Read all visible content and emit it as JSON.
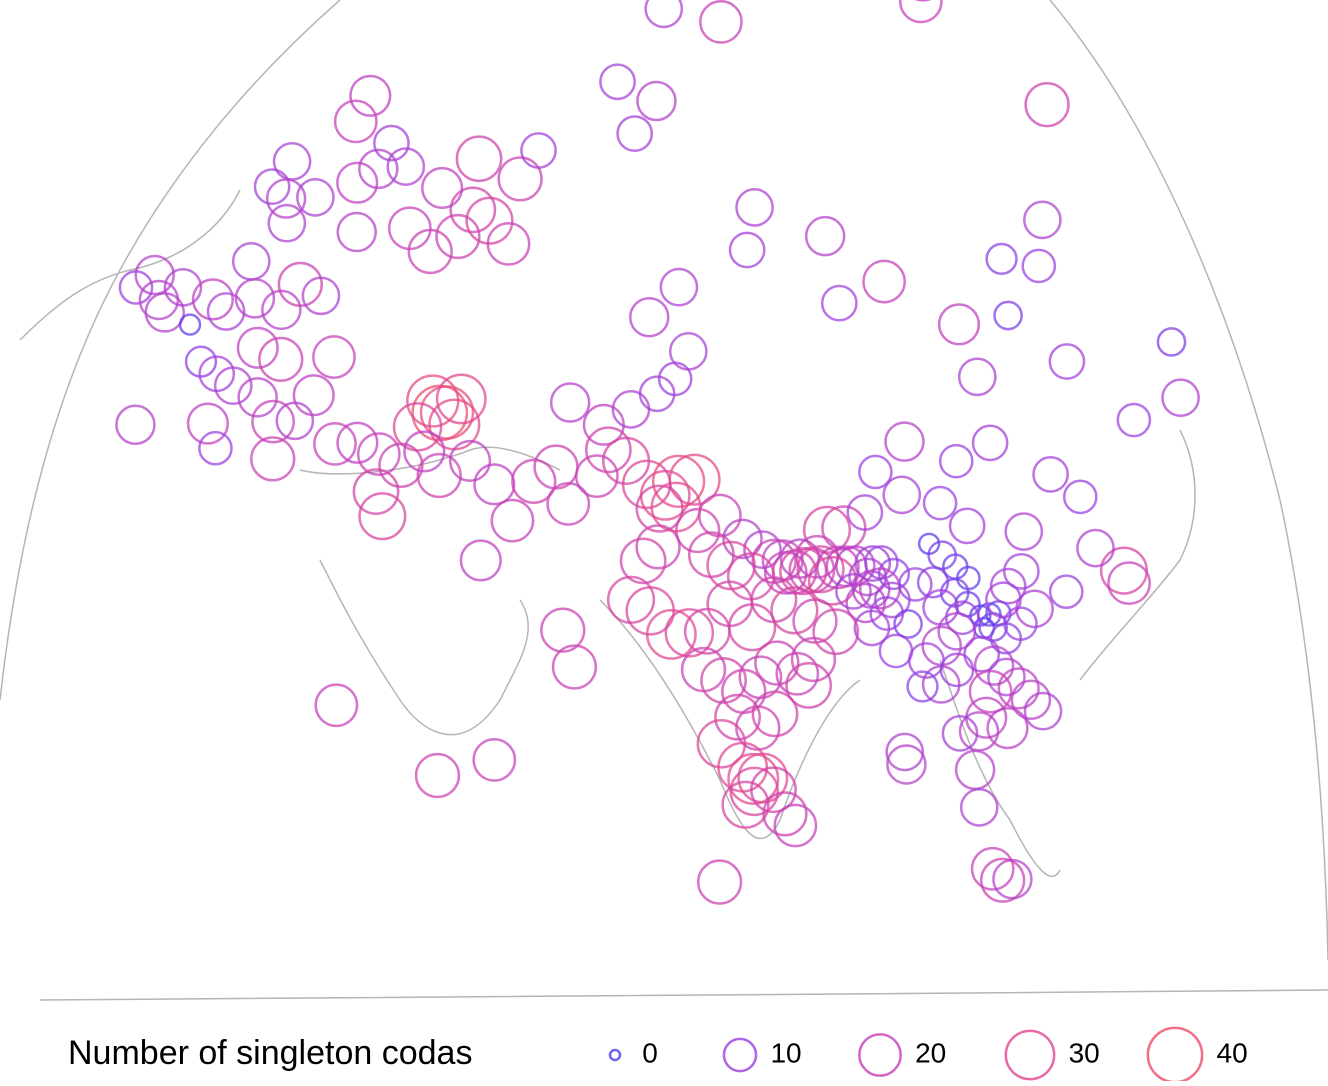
{
  "chart_data": {
    "type": "bubble-map",
    "points": [
      {
        "lon": -8,
        "lat": 53,
        "value": 10
      },
      {
        "lon": -6,
        "lat": 54,
        "value": 16
      },
      {
        "lon": -3,
        "lat": 52,
        "value": 16
      },
      {
        "lon": -1,
        "lat": 51,
        "value": 16
      },
      {
        "lon": 0,
        "lat": 53,
        "value": 14
      },
      {
        "lon": 4,
        "lat": 50,
        "value": 2
      },
      {
        "lon": 2,
        "lat": 42,
        "value": 16
      },
      {
        "lon": 24,
        "lat": 68,
        "value": 18
      },
      {
        "lon": 22,
        "lat": 66,
        "value": 20
      },
      {
        "lon": 10,
        "lat": 63,
        "value": 14
      },
      {
        "lon": 8,
        "lat": 61,
        "value": 12
      },
      {
        "lon": 12,
        "lat": 60,
        "value": 16
      },
      {
        "lon": 14,
        "lat": 58,
        "value": 14
      },
      {
        "lon": 18,
        "lat": 60,
        "value": 14
      },
      {
        "lon": 26,
        "lat": 61,
        "value": 18
      },
      {
        "lon": 30,
        "lat": 62,
        "value": 16
      },
      {
        "lon": 32,
        "lat": 64,
        "value": 12
      },
      {
        "lon": 28,
        "lat": 57,
        "value": 16
      },
      {
        "lon": 36,
        "lat": 62,
        "value": 14
      },
      {
        "lon": 10,
        "lat": 55,
        "value": 14
      },
      {
        "lon": 6,
        "lat": 52,
        "value": 18
      },
      {
        "lon": 9,
        "lat": 51,
        "value": 14
      },
      {
        "lon": 13,
        "lat": 52,
        "value": 16
      },
      {
        "lon": 18,
        "lat": 51,
        "value": 16
      },
      {
        "lon": 20,
        "lat": 53,
        "value": 22
      },
      {
        "lon": 24,
        "lat": 52,
        "value": 14
      },
      {
        "lon": 16,
        "lat": 48,
        "value": 18
      },
      {
        "lon": 20,
        "lat": 47,
        "value": 22
      },
      {
        "lon": 8,
        "lat": 47,
        "value": 8
      },
      {
        "lon": 11,
        "lat": 46,
        "value": 12
      },
      {
        "lon": 14,
        "lat": 45,
        "value": 14
      },
      {
        "lon": 18,
        "lat": 44,
        "value": 16
      },
      {
        "lon": 21,
        "lat": 42,
        "value": 20
      },
      {
        "lon": 24,
        "lat": 42,
        "value": 14
      },
      {
        "lon": 22,
        "lat": 39,
        "value": 22
      },
      {
        "lon": 26,
        "lat": 44,
        "value": 18
      },
      {
        "lon": 28,
        "lat": 47,
        "value": 20
      },
      {
        "lon": 12,
        "lat": 42,
        "value": 18
      },
      {
        "lon": 14,
        "lat": 40,
        "value": 10
      },
      {
        "lon": 38,
        "lat": 57,
        "value": 20
      },
      {
        "lon": 42,
        "lat": 55,
        "value": 22
      },
      {
        "lon": 47,
        "lat": 56,
        "value": 22
      },
      {
        "lon": 50,
        "lat": 58,
        "value": 24
      },
      {
        "lon": 53,
        "lat": 57,
        "value": 26
      },
      {
        "lon": 56,
        "lat": 55,
        "value": 20
      },
      {
        "lon": 52,
        "lat": 62,
        "value": 24
      },
      {
        "lon": 60,
        "lat": 60,
        "value": 22
      },
      {
        "lon": 44,
        "lat": 60,
        "value": 18
      },
      {
        "lon": 65,
        "lat": 62,
        "value": 12
      },
      {
        "lon": 44,
        "lat": 42,
        "value": 40
      },
      {
        "lon": 45,
        "lat": 42,
        "value": 36
      },
      {
        "lon": 43,
        "lat": 43,
        "value": 34
      },
      {
        "lon": 46,
        "lat": 41,
        "value": 32
      },
      {
        "lon": 41,
        "lat": 41,
        "value": 28
      },
      {
        "lon": 47,
        "lat": 43,
        "value": 30
      },
      {
        "lon": 30,
        "lat": 40,
        "value": 20
      },
      {
        "lon": 33,
        "lat": 40,
        "value": 18
      },
      {
        "lon": 36,
        "lat": 39,
        "value": 20
      },
      {
        "lon": 39,
        "lat": 38,
        "value": 22
      },
      {
        "lon": 42,
        "lat": 39,
        "value": 18
      },
      {
        "lon": 36,
        "lat": 36,
        "value": 24
      },
      {
        "lon": 37,
        "lat": 34,
        "value": 26
      },
      {
        "lon": 44,
        "lat": 37,
        "value": 22
      },
      {
        "lon": 48,
        "lat": 38,
        "value": 18
      },
      {
        "lon": 51,
        "lat": 36,
        "value": 18
      },
      {
        "lon": 53,
        "lat": 33,
        "value": 20
      },
      {
        "lon": 49,
        "lat": 30,
        "value": 18
      },
      {
        "lon": 56,
        "lat": 36,
        "value": 22
      },
      {
        "lon": 59,
        "lat": 37,
        "value": 22
      },
      {
        "lon": 33,
        "lat": 19,
        "value": 20
      },
      {
        "lon": 44,
        "lat": 13,
        "value": 22
      },
      {
        "lon": 50,
        "lat": 14,
        "value": 20
      },
      {
        "lon": 58,
        "lat": 24,
        "value": 22
      },
      {
        "lon": 59,
        "lat": 21,
        "value": 22
      },
      {
        "lon": 62,
        "lat": 42,
        "value": 16
      },
      {
        "lon": 66,
        "lat": 40,
        "value": 18
      },
      {
        "lon": 70,
        "lat": 41,
        "value": 14
      },
      {
        "lon": 74,
        "lat": 42,
        "value": 12
      },
      {
        "lon": 77,
        "lat": 43,
        "value": 10
      },
      {
        "lon": 80,
        "lat": 45,
        "value": 14
      },
      {
        "lon": 76,
        "lat": 48,
        "value": 16
      },
      {
        "lon": 82,
        "lat": 50,
        "value": 14
      },
      {
        "lon": 66,
        "lat": 38,
        "value": 24
      },
      {
        "lon": 68,
        "lat": 37,
        "value": 26
      },
      {
        "lon": 70,
        "lat": 35,
        "value": 28
      },
      {
        "lon": 72,
        "lat": 34,
        "value": 30
      },
      {
        "lon": 74,
        "lat": 35,
        "value": 34
      },
      {
        "lon": 76,
        "lat": 35,
        "value": 32
      },
      {
        "lon": 64,
        "lat": 36,
        "value": 20
      },
      {
        "lon": 60,
        "lat": 34,
        "value": 20
      },
      {
        "lon": 88,
        "lat": 66,
        "value": 12
      },
      {
        "lon": 94,
        "lat": 64,
        "value": 16
      },
      {
        "lon": 86,
        "lat": 62,
        "value": 12
      },
      {
        "lon": 110,
        "lat": 70,
        "value": 14
      },
      {
        "lon": 120,
        "lat": 68,
        "value": 20
      },
      {
        "lon": 128,
        "lat": 72,
        "value": 14
      },
      {
        "lon": 135,
        "lat": 70,
        "value": 16
      },
      {
        "lon": 160,
        "lat": 65,
        "value": 20
      },
      {
        "lon": 165,
        "lat": 66,
        "value": 18
      },
      {
        "lon": 158,
        "lat": 57,
        "value": 22
      },
      {
        "lon": 100,
        "lat": 55,
        "value": 14
      },
      {
        "lon": 95,
        "lat": 52,
        "value": 12
      },
      {
        "lon": 108,
        "lat": 52,
        "value": 16
      },
      {
        "lon": 104,
        "lat": 47,
        "value": 12
      },
      {
        "lon": 112,
        "lat": 48,
        "value": 20
      },
      {
        "lon": 118,
        "lat": 44,
        "value": 18
      },
      {
        "lon": 130,
        "lat": 48,
        "value": 8
      },
      {
        "lon": 134,
        "lat": 47,
        "value": 10
      },
      {
        "lon": 140,
        "lat": 50,
        "value": 14
      },
      {
        "lon": 125,
        "lat": 44,
        "value": 6
      },
      {
        "lon": 128,
        "lat": 40,
        "value": 12
      },
      {
        "lon": 131,
        "lat": 35,
        "value": 10
      },
      {
        "lon": 138,
        "lat": 36,
        "value": 14
      },
      {
        "lon": 142,
        "lat": 40,
        "value": 6
      },
      {
        "lon": 121,
        "lat": 24,
        "value": 26
      },
      {
        "lon": 121,
        "lat": 23,
        "value": 20
      },
      {
        "lon": 116,
        "lat": 40,
        "value": 14
      },
      {
        "lon": 113,
        "lat": 35,
        "value": 12
      },
      {
        "lon": 108,
        "lat": 34,
        "value": 10
      },
      {
        "lon": 103,
        "lat": 36,
        "value": 16
      },
      {
        "lon": 118,
        "lat": 32,
        "value": 12
      },
      {
        "lon": 120,
        "lat": 30,
        "value": 10
      },
      {
        "lon": 112,
        "lat": 28,
        "value": 14
      },
      {
        "lon": 110,
        "lat": 25,
        "value": 12
      },
      {
        "lon": 114,
        "lat": 23,
        "value": 10
      },
      {
        "lon": 119,
        "lat": 26,
        "value": 14
      },
      {
        "lon": 106,
        "lat": 29,
        "value": 12
      },
      {
        "lon": 104,
        "lat": 31,
        "value": 10
      },
      {
        "lon": 100,
        "lat": 32,
        "value": 14
      },
      {
        "lon": 98,
        "lat": 34,
        "value": 10
      },
      {
        "lon": 92,
        "lat": 30,
        "value": 22
      },
      {
        "lon": 95,
        "lat": 31,
        "value": 12
      },
      {
        "lon": 90,
        "lat": 30,
        "value": 26
      },
      {
        "lon": 88,
        "lat": 28,
        "value": 20
      },
      {
        "lon": 86,
        "lat": 28,
        "value": 16
      },
      {
        "lon": 84,
        "lat": 28,
        "value": 18
      },
      {
        "lon": 82,
        "lat": 29,
        "value": 14
      },
      {
        "lon": 80,
        "lat": 30,
        "value": 16
      },
      {
        "lon": 78,
        "lat": 32,
        "value": 20
      },
      {
        "lon": 85,
        "lat": 27,
        "value": 22
      },
      {
        "lon": 86,
        "lat": 27,
        "value": 26
      },
      {
        "lon": 87,
        "lat": 27,
        "value": 24
      },
      {
        "lon": 88,
        "lat": 27,
        "value": 26
      },
      {
        "lon": 89,
        "lat": 26,
        "value": 28
      },
      {
        "lon": 84,
        "lat": 27,
        "value": 20
      },
      {
        "lon": 83,
        "lat": 28,
        "value": 22
      },
      {
        "lon": 90,
        "lat": 27,
        "value": 20
      },
      {
        "lon": 91,
        "lat": 27,
        "value": 18
      },
      {
        "lon": 92,
        "lat": 27,
        "value": 16
      },
      {
        "lon": 93,
        "lat": 26,
        "value": 14
      },
      {
        "lon": 94,
        "lat": 27,
        "value": 12
      },
      {
        "lon": 95,
        "lat": 27,
        "value": 10
      },
      {
        "lon": 96,
        "lat": 26,
        "value": 8
      },
      {
        "lon": 93,
        "lat": 25,
        "value": 14
      },
      {
        "lon": 94,
        "lat": 25,
        "value": 18
      },
      {
        "lon": 95,
        "lat": 24,
        "value": 12
      },
      {
        "lon": 92,
        "lat": 24,
        "value": 16
      },
      {
        "lon": 91,
        "lat": 25,
        "value": 12
      },
      {
        "lon": 94,
        "lat": 23,
        "value": 10
      },
      {
        "lon": 96,
        "lat": 22,
        "value": 6
      },
      {
        "lon": 98,
        "lat": 25,
        "value": 10
      },
      {
        "lon": 100,
        "lat": 25,
        "value": 8
      },
      {
        "lon": 102,
        "lat": 24,
        "value": 6
      },
      {
        "lon": 103,
        "lat": 23,
        "value": 4
      },
      {
        "lon": 104,
        "lat": 22,
        "value": 2
      },
      {
        "lon": 105,
        "lat": 22,
        "value": 3
      },
      {
        "lon": 106,
        "lat": 22,
        "value": 4
      },
      {
        "lon": 104,
        "lat": 21,
        "value": 2
      },
      {
        "lon": 105,
        "lat": 21,
        "value": 6
      },
      {
        "lon": 106,
        "lat": 20,
        "value": 8
      },
      {
        "lon": 102,
        "lat": 22,
        "value": 10
      },
      {
        "lon": 100,
        "lat": 23,
        "value": 12
      },
      {
        "lon": 101,
        "lat": 21,
        "value": 14
      },
      {
        "lon": 99,
        "lat": 20,
        "value": 16
      },
      {
        "lon": 97,
        "lat": 19,
        "value": 12
      },
      {
        "lon": 98,
        "lat": 17,
        "value": 14
      },
      {
        "lon": 100,
        "lat": 18,
        "value": 10
      },
      {
        "lon": 103,
        "lat": 19,
        "value": 12
      },
      {
        "lon": 104,
        "lat": 18,
        "value": 16
      },
      {
        "lon": 105,
        "lat": 17,
        "value": 14
      },
      {
        "lon": 106,
        "lat": 16,
        "value": 18
      },
      {
        "lon": 107,
        "lat": 15,
        "value": 16
      },
      {
        "lon": 108,
        "lat": 14,
        "value": 14
      },
      {
        "lon": 103,
        "lat": 16,
        "value": 20
      },
      {
        "lon": 102,
        "lat": 14,
        "value": 18
      },
      {
        "lon": 101,
        "lat": 13,
        "value": 16
      },
      {
        "lon": 104,
        "lat": 13,
        "value": 18
      },
      {
        "lon": 99,
        "lat": 13,
        "value": 12
      },
      {
        "lon": 100,
        "lat": 10,
        "value": 16
      },
      {
        "lon": 96,
        "lat": 17,
        "value": 8
      },
      {
        "lon": 94,
        "lat": 20,
        "value": 10
      },
      {
        "lon": 92,
        "lat": 22,
        "value": 12
      },
      {
        "lon": 103,
        "lat": 26,
        "value": 4
      },
      {
        "lon": 102,
        "lat": 27,
        "value": 6
      },
      {
        "lon": 101,
        "lat": 28,
        "value": 2
      },
      {
        "lon": 104,
        "lat": 25,
        "value": 3
      },
      {
        "lon": 108,
        "lat": 24,
        "value": 12
      },
      {
        "lon": 110,
        "lat": 22,
        "value": 14
      },
      {
        "lon": 108,
        "lat": 21,
        "value": 10
      },
      {
        "lon": 107,
        "lat": 23,
        "value": 12
      },
      {
        "lon": 75,
        "lat": 31,
        "value": 22
      },
      {
        "lon": 76,
        "lat": 29,
        "value": 24
      },
      {
        "lon": 78,
        "lat": 28,
        "value": 28
      },
      {
        "lon": 80,
        "lat": 27,
        "value": 26
      },
      {
        "lon": 82,
        "lat": 25,
        "value": 24
      },
      {
        "lon": 84,
        "lat": 24,
        "value": 26
      },
      {
        "lon": 86,
        "lat": 23,
        "value": 22
      },
      {
        "lon": 88,
        "lat": 22,
        "value": 24
      },
      {
        "lon": 77,
        "lat": 25,
        "value": 24
      },
      {
        "lon": 79,
        "lat": 23,
        "value": 26
      },
      {
        "lon": 74,
        "lat": 23,
        "value": 24
      },
      {
        "lon": 72,
        "lat": 23,
        "value": 28
      },
      {
        "lon": 70,
        "lat": 23,
        "value": 30
      },
      {
        "lon": 73,
        "lat": 20,
        "value": 22
      },
      {
        "lon": 75,
        "lat": 19,
        "value": 24
      },
      {
        "lon": 77,
        "lat": 18,
        "value": 22
      },
      {
        "lon": 79,
        "lat": 19,
        "value": 20
      },
      {
        "lon": 81,
        "lat": 20,
        "value": 22
      },
      {
        "lon": 83,
        "lat": 19,
        "value": 20
      },
      {
        "lon": 85,
        "lat": 20,
        "value": 22
      },
      {
        "lon": 84,
        "lat": 18,
        "value": 24
      },
      {
        "lon": 76,
        "lat": 16,
        "value": 24
      },
      {
        "lon": 78,
        "lat": 15,
        "value": 22
      },
      {
        "lon": 80,
        "lat": 16,
        "value": 24
      },
      {
        "lon": 74,
        "lat": 14,
        "value": 28
      },
      {
        "lon": 76,
        "lat": 12,
        "value": 30
      },
      {
        "lon": 77,
        "lat": 11,
        "value": 32
      },
      {
        "lon": 78,
        "lat": 11,
        "value": 30
      },
      {
        "lon": 77,
        "lat": 10,
        "value": 28
      },
      {
        "lon": 76,
        "lat": 9,
        "value": 26
      },
      {
        "lon": 79,
        "lat": 10,
        "value": 24
      },
      {
        "lon": 80,
        "lat": 8,
        "value": 22
      },
      {
        "lon": 81,
        "lat": 7,
        "value": 20
      },
      {
        "lon": 73,
        "lat": 3,
        "value": 22
      },
      {
        "lon": 68,
        "lat": 25,
        "value": 28
      },
      {
        "lon": 66,
        "lat": 26,
        "value": 26
      },
      {
        "lon": 68,
        "lat": 29,
        "value": 24
      },
      {
        "lon": 70,
        "lat": 30,
        "value": 22
      },
      {
        "lon": 71,
        "lat": 33,
        "value": 26
      },
      {
        "lon": 73,
        "lat": 33,
        "value": 30
      },
      {
        "lon": 93,
        "lat": 12,
        "value": 14
      },
      {
        "lon": 93,
        "lat": 11,
        "value": 16
      },
      {
        "lon": 101,
        "lat": 2,
        "value": 20
      },
      {
        "lon": 102,
        "lat": 1,
        "value": 22
      },
      {
        "lon": 103,
        "lat": 1,
        "value": 16
      },
      {
        "lon": 100,
        "lat": 7,
        "value": 14
      }
    ],
    "legend": {
      "title": "Number of singleton codas",
      "values": [
        0,
        10,
        20,
        30,
        40
      ],
      "colors": [
        "#4b3cf2",
        "#9a3ee0",
        "#c63fb8",
        "#e0458f",
        "#ee4c6a"
      ]
    }
  }
}
